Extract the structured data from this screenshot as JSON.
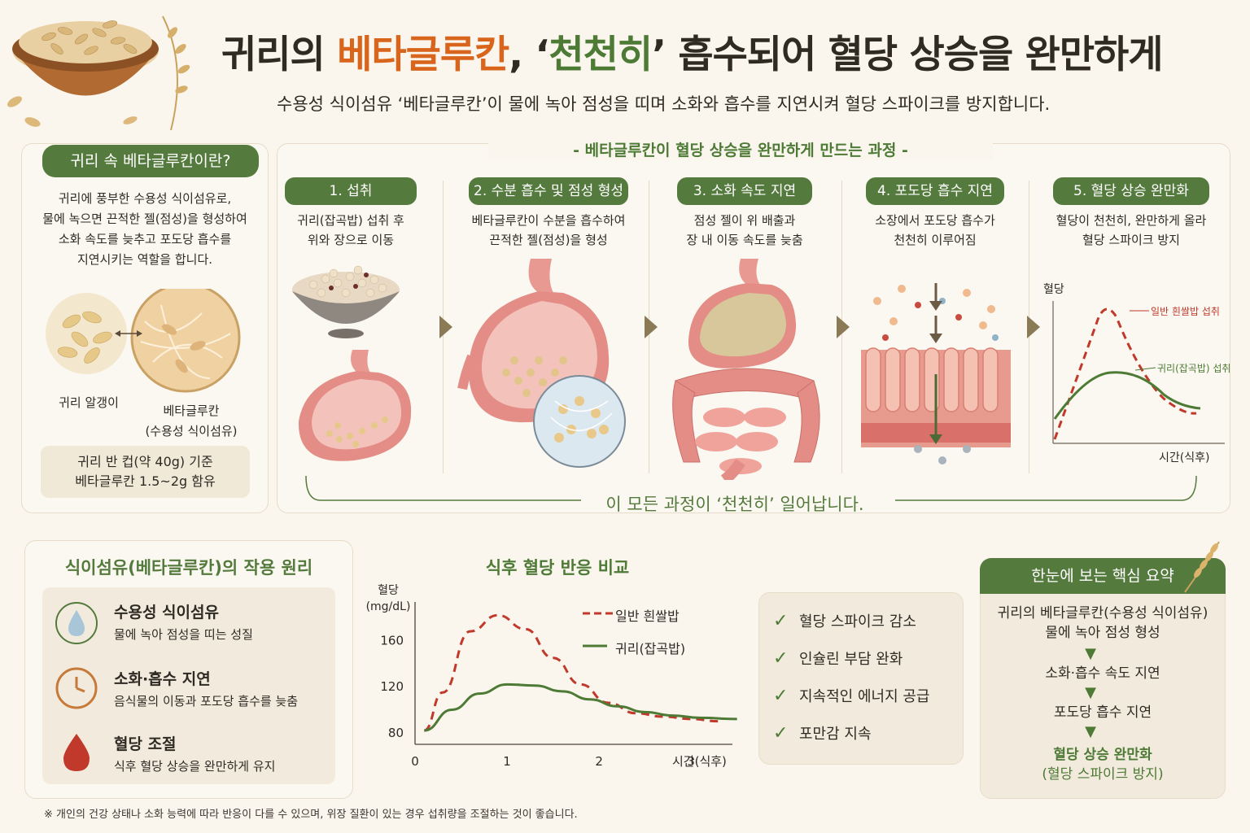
{
  "header": {
    "title_part1": "귀리의 ",
    "title_part2": "베타글루칸",
    "title_part3": ", ‘",
    "title_part4": "천천히",
    "title_part5": "’ 흡수되어 혈당 상승을 완만하게",
    "subtitle": "수용성 식이섬유 ‘베타글루칸’이 물에 녹아 점성을 띠며 소화와 흡수를 지연시켜 혈당 스파이크를 방지합니다."
  },
  "intro": {
    "heading": "귀리 속 베타글루칸이란?",
    "description_lines": [
      "귀리에 풍부한 수용성 식이섬유로,",
      "물에 녹으면 끈적한 젤(점성)을 형성하여",
      "소화 속도를 늦추고 포도당 흡수를",
      "지연시키는 역할을 합니다."
    ],
    "label_oat": "귀리 알갱이",
    "label_beta_line1": "베타글루칸",
    "label_beta_line2": "(수용성 식이섬유)",
    "box_line1": "귀리 반 컵(약 40g) 기준",
    "box_line2": "베타글루칸 1.5~2g 함유"
  },
  "process": {
    "heading": "- 베타글루칸이 혈당 상승을 완만하게 만드는 과정 -",
    "steps": [
      {
        "label": "1. 섭취",
        "desc1": "귀리(잡곡밥) 섭취 후",
        "desc2": "위와 장으로 이동"
      },
      {
        "label": "2. 수분 흡수 및 점성 형성",
        "desc1": "베타글루칸이 수분을 흡수하여",
        "desc2": "끈적한 젤(점성)을 형성"
      },
      {
        "label": "3. 소화 속도 지연",
        "desc1": "점성 젤이 위 배출과",
        "desc2": "장 내 이동 속도를 늦춤"
      },
      {
        "label": "4. 포도당 흡수 지연",
        "desc1": "소장에서 포도당 흡수가",
        "desc2": "천천히 이루어짐"
      },
      {
        "label": "5. 혈당 상승 완만화",
        "desc1": "혈당이 천천히, 완만하게 올라",
        "desc2": "혈당 스파이크 방지"
      }
    ],
    "mini_chart": {
      "ylabel": "혈당",
      "xlabel": "시간(식후)",
      "series1": "일반 흰쌀밥 섭취",
      "series2": "귀리(잡곡밥) 섭취"
    },
    "footer": "이 모든 과정이 ‘천천히’ 일어납니다."
  },
  "principle": {
    "heading": "식이섬유(베타글루칸)의 작용 원리",
    "items": [
      {
        "title": "수용성 식이섬유",
        "desc": "물에 녹아 점성을 띠는 성질"
      },
      {
        "title": "소화·흡수 지연",
        "desc": "음식물의 이동과 포도당 흡수를 늦춤"
      },
      {
        "title": "혈당 조절",
        "desc": "식후 혈당 상승을 완만하게 유지"
      }
    ]
  },
  "chart_data": {
    "type": "line",
    "title": "식후 혈당 반응 비교",
    "ylabel": "혈당\n(mg/dL)",
    "ylabel_line1": "혈당",
    "ylabel_line2": "(mg/dL)",
    "xlabel": "시간(식후)",
    "x_ticks": [
      "0",
      "1",
      "2",
      "3"
    ],
    "y_ticks": [
      "80",
      "120",
      "160"
    ],
    "xlim": [
      0,
      3.45
    ],
    "ylim": [
      70,
      190
    ],
    "series": [
      {
        "name": "일반 흰쌀밥",
        "style": "dashed",
        "color": "#c0392b",
        "x": [
          0.1,
          0.3,
          0.6,
          0.9,
          1.2,
          1.5,
          1.8,
          2.1,
          2.4,
          2.7,
          3.0,
          3.3
        ],
        "y": [
          82,
          115,
          168,
          182,
          170,
          145,
          122,
          106,
          97,
          94,
          92,
          90
        ]
      },
      {
        "name": "귀리(잡곡밥)",
        "style": "solid",
        "color": "#4d7a35",
        "x": [
          0.1,
          0.4,
          0.7,
          1.0,
          1.3,
          1.6,
          1.9,
          2.2,
          2.5,
          2.8,
          3.1,
          3.5
        ],
        "y": [
          82,
          100,
          114,
          122,
          121,
          116,
          109,
          103,
          98,
          95,
          93,
          92
        ]
      }
    ],
    "legend_position": "top-right",
    "grid": false
  },
  "checklist": {
    "items": [
      "혈당 스파이크 감소",
      "인슐린 부담 완화",
      "지속적인 에너지 공급",
      "포만감 지속"
    ]
  },
  "summary": {
    "heading": "한눈에 보는 핵심 요약",
    "flow": [
      "귀리의 베타글루칸(수용성 식이섬유)\n물에 녹아 점성 형성",
      "소화·흡수 속도 지연",
      "포도당 흡수 지연",
      "혈당 상승 완만화\n(혈당 스파이크 방지)"
    ],
    "flow1_line1": "귀리의 베타글루칸(수용성 식이섬유)",
    "flow1_line2": "물에 녹아 점성 형성",
    "flow2": "소화·흡수 속도 지연",
    "flow3": "포도당 흡수 지연",
    "flow4_line1": "혈당 상승 완만화",
    "flow4_line2": "(혈당 스파이크 방지)"
  },
  "footnote": "※ 개인의 건강 상태나 소화 능력에 따라 반응이 다를 수 있으며, 위장 질환이 있는 경우 섭취량을 조절하는 것이 좋습니다.",
  "colors": {
    "green": "#557a3d",
    "orange": "#d9651c",
    "red": "#c0392b",
    "background": "#faf6ee"
  }
}
